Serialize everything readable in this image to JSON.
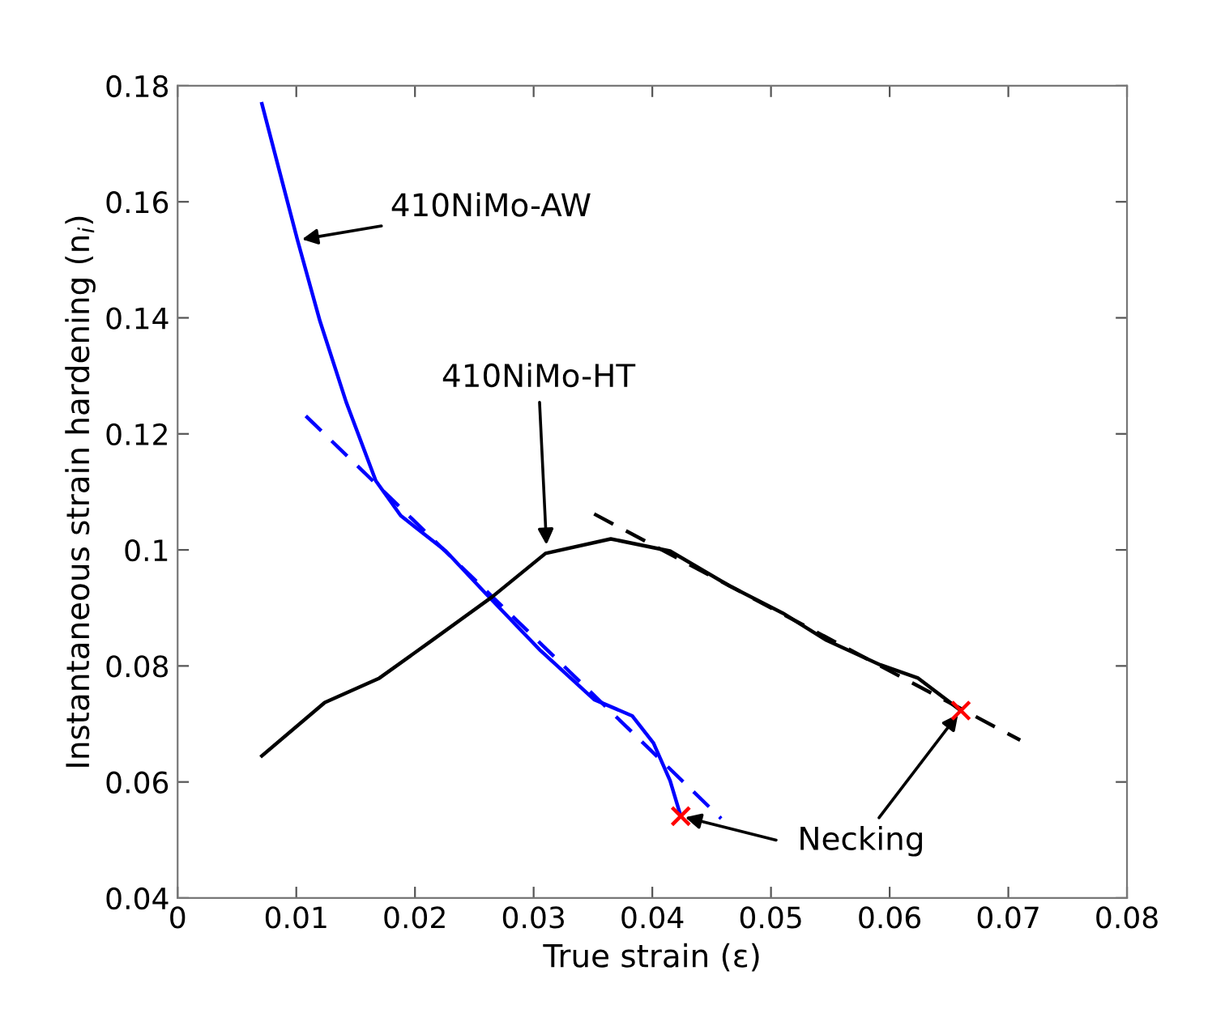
{
  "chart_data": {
    "type": "line",
    "xlabel": "True strain (ε)",
    "ylabel": "Instantaneous strain hardening (n$_{i}$)",
    "xlim": [
      0,
      0.08
    ],
    "xticks": [
      0,
      0.01,
      0.02,
      0.03,
      0.04,
      0.05,
      0.06,
      0.07,
      0.08
    ],
    "ylim": [
      0.04,
      0.18
    ],
    "yticks": [
      0.04,
      0.06,
      0.08,
      0.1,
      0.12,
      0.14,
      0.16,
      0.18
    ],
    "grid": false,
    "legend": false,
    "series": [
      {
        "color": "#0000ff",
        "line_style": "solid",
        "x": [
          0.0071,
          0.0101,
          0.012,
          0.0142,
          0.0167,
          0.0188,
          0.0226,
          0.026,
          0.0306,
          0.0351,
          0.0383,
          0.0401,
          0.0415,
          0.0424
        ],
        "values": [
          0.1769,
          0.1534,
          0.1394,
          0.1255,
          0.1119,
          0.1059,
          0.0998,
          0.0924,
          0.0826,
          0.0742,
          0.0714,
          0.0667,
          0.0602,
          0.0541
        ]
      },
      {
        "color": "#0000ff",
        "line_style": "dashed",
        "x": [
          0.0108,
          0.0458
        ],
        "values": [
          0.1231,
          0.0537
        ]
      },
      {
        "color": "#000000",
        "line_style": "solid",
        "x": [
          0.0071,
          0.0124,
          0.017,
          0.0215,
          0.0265,
          0.031,
          0.0365,
          0.0415,
          0.0465,
          0.051,
          0.0547,
          0.0592,
          0.0624,
          0.066
        ],
        "values": [
          0.0645,
          0.0737,
          0.0779,
          0.0845,
          0.0919,
          0.0994,
          0.1019,
          0.0998,
          0.0938,
          0.0891,
          0.0844,
          0.0802,
          0.0779,
          0.0723
        ]
      },
      {
        "color": "#000000",
        "line_style": "dashed",
        "x": [
          0.0351,
          0.071
        ],
        "values": [
          0.1062,
          0.0672
        ]
      },
      {
        "type": "scatter",
        "color": "#ff0000",
        "marker": "cross",
        "x": [
          0.0424,
          0.066
        ],
        "values": [
          0.0541,
          0.0723
        ]
      }
    ],
    "annotations": [
      {
        "text": "410NiMo-AW",
        "x": 0.0101,
        "y": 0.1534
      },
      {
        "text": "410NiMo-HT",
        "x": 0.0311,
        "y": 0.1001
      },
      {
        "text": "Necking",
        "x": 0.066,
        "y": 0.0723
      }
    ]
  }
}
